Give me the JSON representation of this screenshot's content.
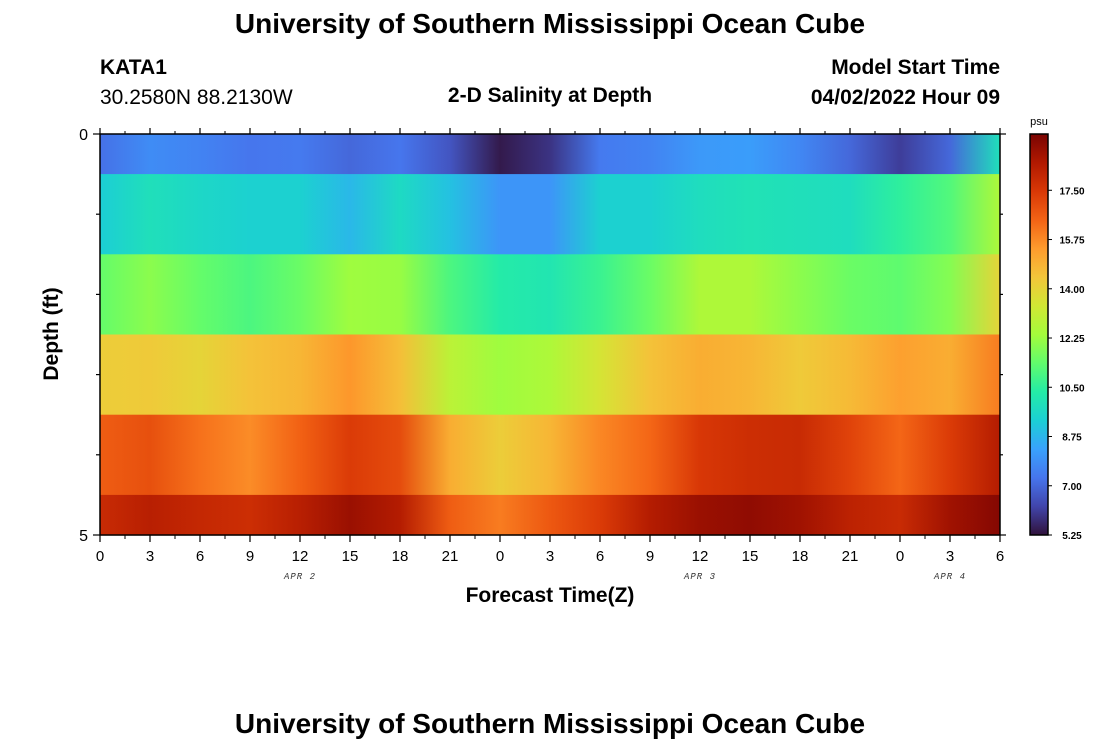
{
  "header": {
    "title": "University of Southern Mississippi Ocean Cube",
    "station": "KATA1",
    "coords": "30.2580N  88.2130W",
    "plot_title": "2-D Salinity at Depth",
    "start_label": "Model Start Time",
    "start_value": "04/02/2022 Hour 09"
  },
  "footer": {
    "title": "University of Southern Mississippi Ocean Cube"
  },
  "colors": {
    "scale": [
      "#30123b",
      "#4145ab",
      "#4675ed",
      "#39a2fc",
      "#1bcfd4",
      "#24eca6",
      "#61fc6c",
      "#a4fc3b",
      "#d1e834",
      "#f3c63a",
      "#fe9b2d",
      "#f36315",
      "#d93806",
      "#b11901",
      "#7a0402"
    ]
  },
  "chart_data": {
    "type": "heatmap",
    "title": "2-D Salinity at Depth",
    "xlabel": "Forecast Time(Z)",
    "ylabel": "Depth (ft)",
    "x_hours": [
      0,
      3,
      6,
      9,
      12,
      15,
      18,
      21,
      24,
      27,
      30,
      33,
      36,
      39,
      42,
      45,
      48,
      51,
      54
    ],
    "x_tick_labels": [
      "0",
      "3",
      "6",
      "9",
      "12",
      "15",
      "18",
      "21",
      "0",
      "3",
      "6",
      "9",
      "12",
      "15",
      "18",
      "21",
      "0",
      "3",
      "6"
    ],
    "x_minor_step_hours": 1.5,
    "date_labels": [
      {
        "label": "APR 2",
        "hour": 12
      },
      {
        "label": "APR 3",
        "hour": 36
      },
      {
        "label": "APR 4",
        "hour": 51
      }
    ],
    "ylim": [
      0,
      5
    ],
    "y_tick_labels": [
      "0",
      "5"
    ],
    "y_minor_step": 1,
    "depth_bands": [
      {
        "name": "0-0.5 ft",
        "range": [
          0,
          0.5
        ],
        "values": [
          7.2,
          7.8,
          7.6,
          7.3,
          7.4,
          7.0,
          7.3,
          6.6,
          5.4,
          5.9,
          7.4,
          7.6,
          8.1,
          8.2,
          7.7,
          7.0,
          6.1,
          7.0,
          9.9
        ]
      },
      {
        "name": "0.5-1.5 ft",
        "range": [
          0.5,
          1.5
        ],
        "values": [
          9.3,
          9.9,
          9.6,
          9.4,
          9.4,
          8.8,
          9.7,
          9.0,
          8.0,
          8.0,
          9.4,
          9.4,
          9.8,
          10.0,
          9.9,
          9.8,
          10.5,
          11.1,
          12.6
        ]
      },
      {
        "name": "1.5-2.5 ft",
        "range": [
          1.5,
          2.5
        ],
        "values": [
          11.4,
          12.0,
          11.4,
          11.0,
          11.5,
          12.3,
          12.2,
          11.0,
          10.3,
          10.1,
          10.7,
          11.5,
          12.6,
          12.6,
          12.0,
          11.5,
          11.3,
          11.9,
          14.0
        ]
      },
      {
        "name": "2.5-3.5 ft",
        "range": [
          2.5,
          3.5
        ],
        "values": [
          14.2,
          14.3,
          14.0,
          14.5,
          14.8,
          15.5,
          14.6,
          12.9,
          12.3,
          12.6,
          13.5,
          14.5,
          15.0,
          14.8,
          14.3,
          14.7,
          15.3,
          15.0,
          16.0
        ]
      },
      {
        "name": "3.5-4.5 ft",
        "range": [
          3.5,
          4.5
        ],
        "values": [
          16.6,
          16.9,
          16.2,
          15.7,
          16.5,
          17.4,
          17.0,
          15.0,
          14.2,
          14.8,
          15.8,
          16.4,
          17.5,
          17.8,
          17.9,
          17.2,
          16.4,
          17.4,
          18.4
        ]
      },
      {
        "name": "4.5-5 ft",
        "range": [
          4.5,
          5
        ],
        "values": [
          17.9,
          18.3,
          18.0,
          17.8,
          18.3,
          18.9,
          18.4,
          16.6,
          16.0,
          16.7,
          17.4,
          18.4,
          18.9,
          19.1,
          18.8,
          18.2,
          17.9,
          18.8,
          19.3
        ]
      }
    ],
    "colorbar": {
      "unit": "psu",
      "range": [
        5.25,
        19.5
      ],
      "tick_values": [
        5.25,
        7.0,
        8.75,
        10.5,
        12.25,
        14.0,
        15.75,
        17.5
      ],
      "tick_labels": [
        "5.25",
        "7.00",
        "8.75",
        "10.50",
        "12.25",
        "14.00",
        "15.75",
        "17.50"
      ]
    }
  }
}
